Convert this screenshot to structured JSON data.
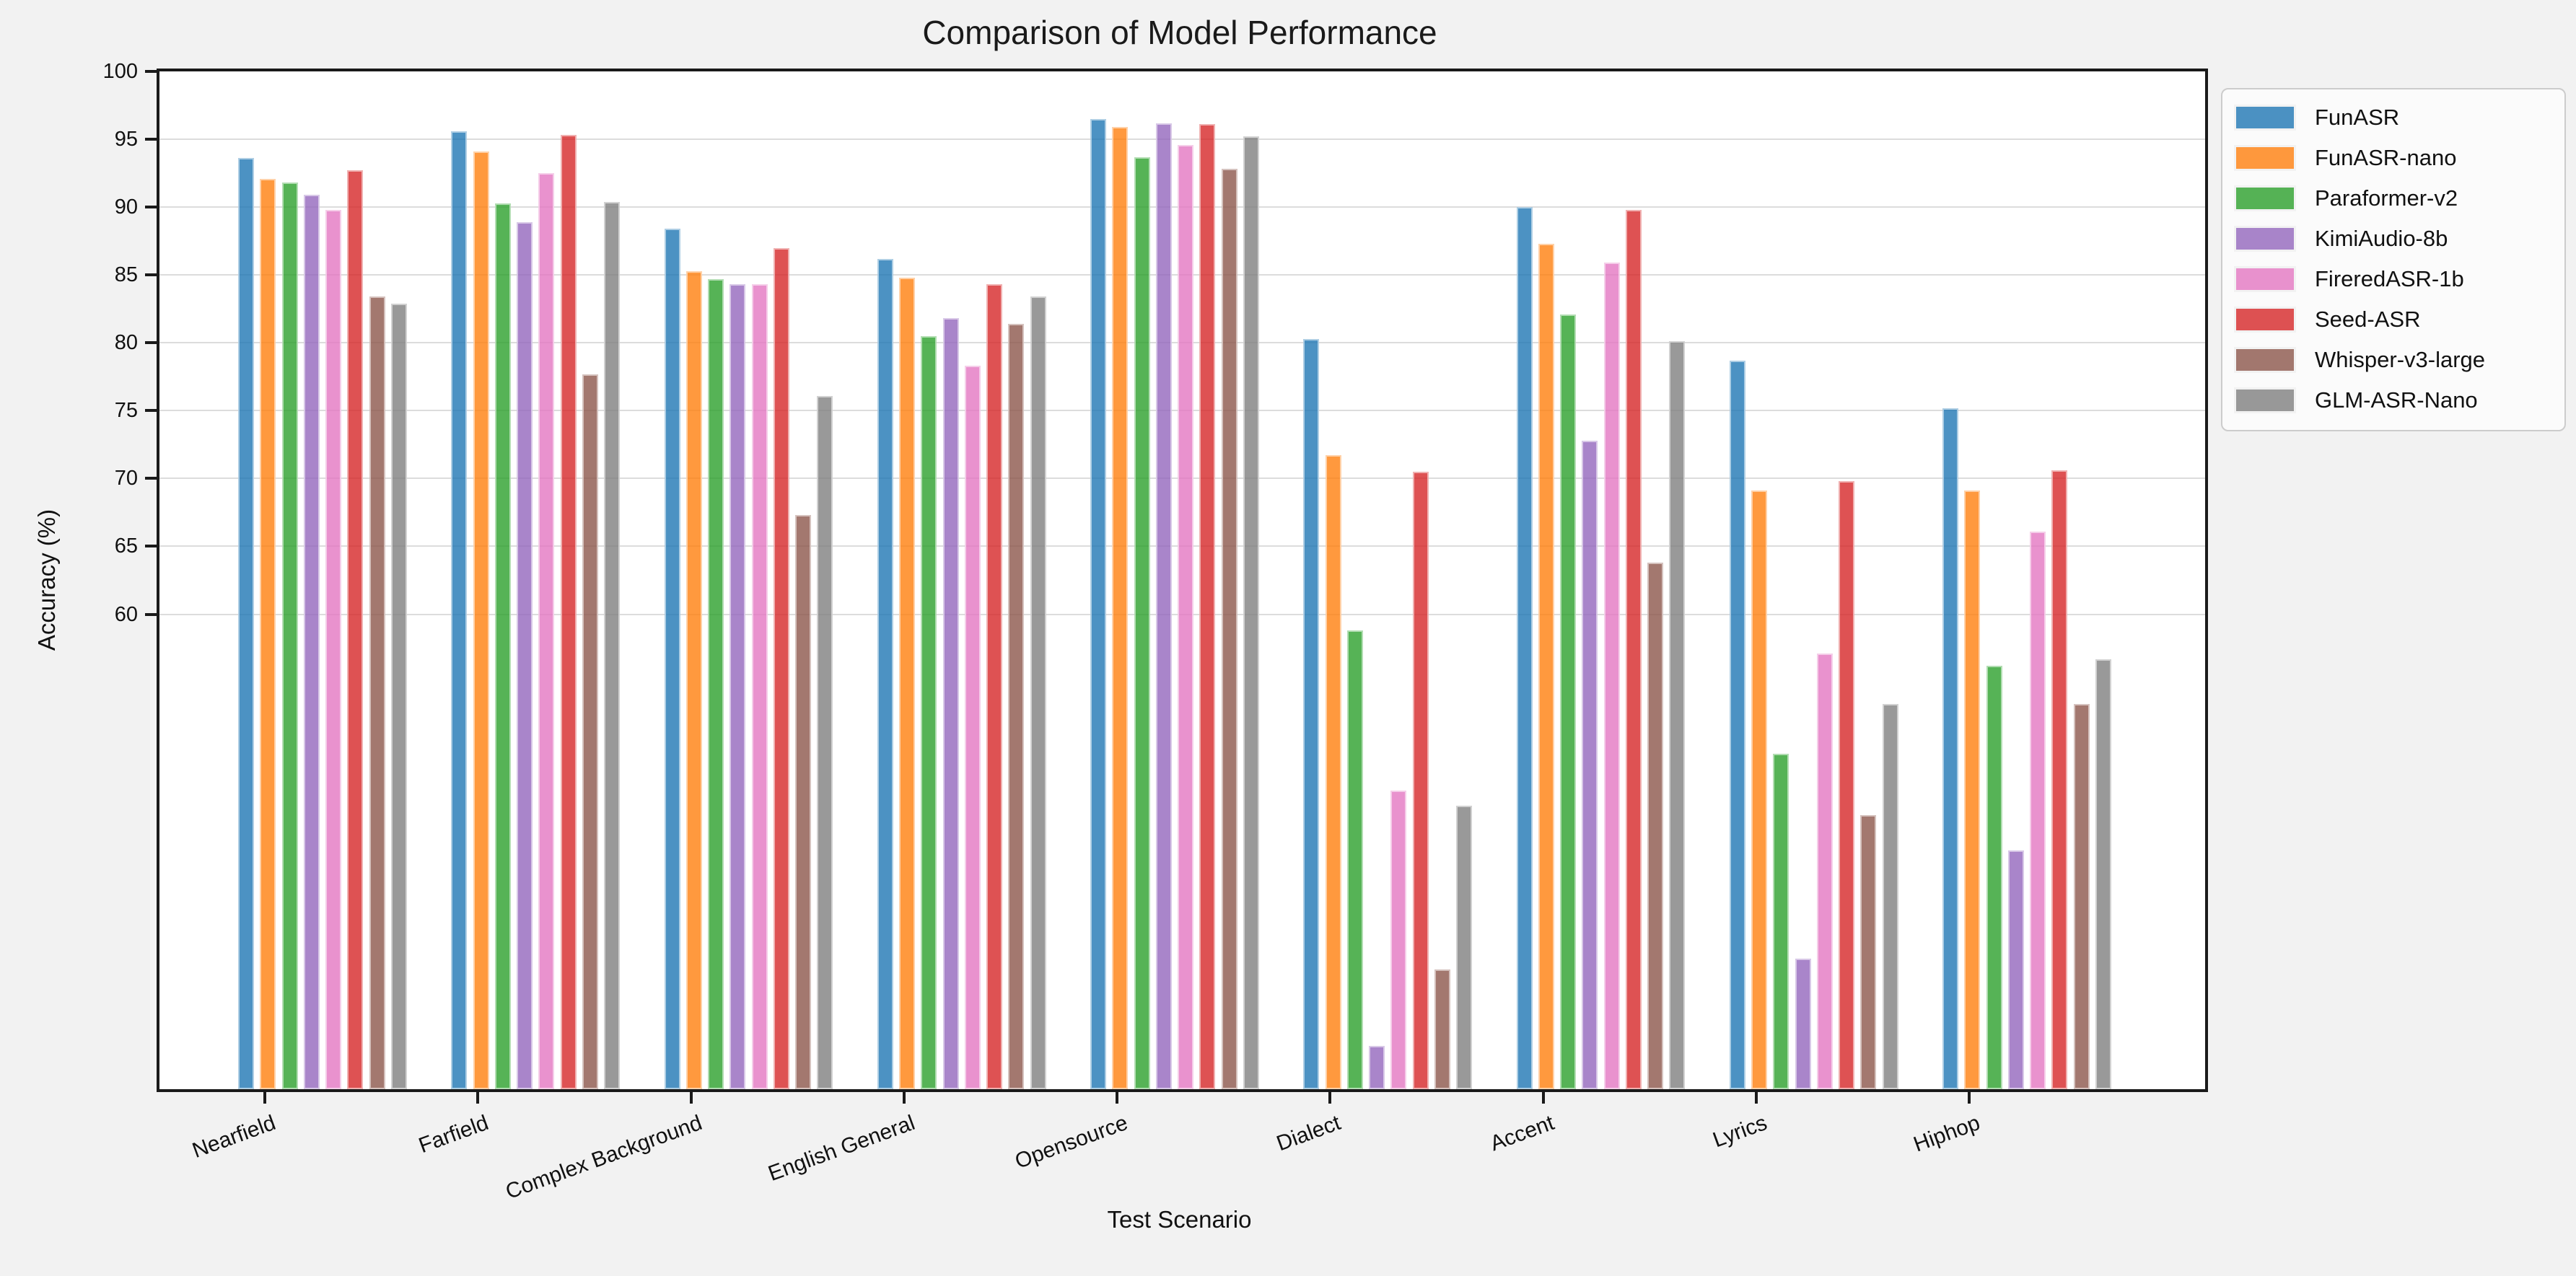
{
  "title": "Comparison of Model Performance",
  "chart_data": {
    "type": "bar",
    "title": "Comparison of Model Performance",
    "xlabel": "Test Scenario",
    "ylabel": "Accuracy (%)",
    "ylim": [
      25,
      100
    ],
    "yticks": [
      100,
      95,
      90,
      85,
      80,
      75,
      70,
      65,
      60
    ],
    "grid": true,
    "legend_position": "upper right, outside axes",
    "figure_facecolor": "#f2f2f2",
    "axes_facecolor": "#ffffff",
    "gridline_color": "#dcdcdc",
    "categories": [
      "Nearfield",
      "Farfield",
      "Complex Background",
      "English General",
      "Opensource",
      "Dialect",
      "Accent",
      "Lyrics",
      "Hiphop"
    ],
    "series": [
      {
        "name": "FunASR",
        "color": "rgba(31,119,180,0.8)",
        "values": [
          93.6,
          95.6,
          88.4,
          86.2,
          96.5,
          80.3,
          90.0,
          78.7,
          75.2
        ]
      },
      {
        "name": "FunASR-nano",
        "color": "rgba(255,127,14,0.8)",
        "values": [
          92.1,
          94.1,
          85.3,
          84.8,
          95.9,
          71.7,
          87.3,
          69.1,
          69.1
        ]
      },
      {
        "name": "Paraformer-v2",
        "color": "rgba(44,160,44,0.8)",
        "values": [
          91.8,
          90.3,
          84.7,
          80.5,
          93.7,
          58.8,
          82.1,
          49.7,
          56.2
        ]
      },
      {
        "name": "KimiAudio-8b",
        "color": "rgba(148,103,189,0.8)",
        "values": [
          90.9,
          88.9,
          84.3,
          81.8,
          96.2,
          28.2,
          72.8,
          34.6,
          42.6
        ]
      },
      {
        "name": "FireredASR-1b",
        "color": "rgba(227,119,194,0.8)",
        "values": [
          89.8,
          92.5,
          84.3,
          78.3,
          94.6,
          47.0,
          85.9,
          57.1,
          66.1
        ]
      },
      {
        "name": "Seed-ASR",
        "color": "rgba(214,39,40,0.8)",
        "values": [
          92.7,
          95.3,
          87.0,
          84.3,
          96.1,
          70.5,
          89.8,
          69.8,
          70.6
        ]
      },
      {
        "name": "Whisper-v3-large",
        "color": "rgba(140,86,75,0.8)",
        "values": [
          83.4,
          77.7,
          67.3,
          81.4,
          92.8,
          33.8,
          63.8,
          45.2,
          53.4
        ]
      },
      {
        "name": "GLM-ASR-Nano",
        "color": "rgba(127,127,127,0.8)",
        "values": [
          82.9,
          90.4,
          76.1,
          83.4,
          95.2,
          45.9,
          80.1,
          53.4,
          56.7
        ]
      }
    ]
  }
}
